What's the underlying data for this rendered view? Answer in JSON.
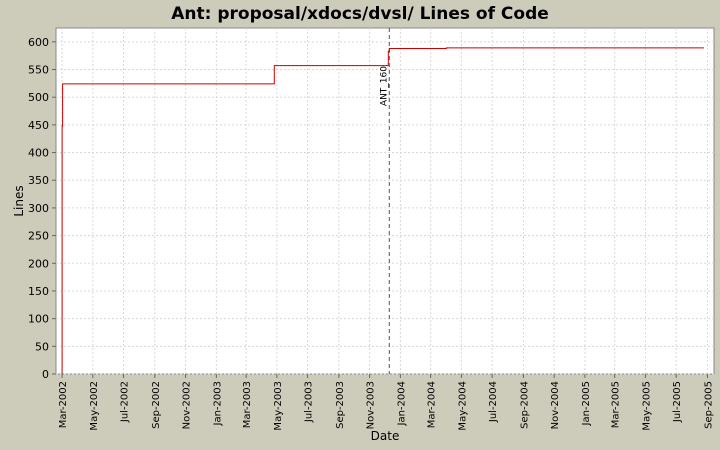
{
  "chart_data": {
    "type": "line",
    "title": "Ant: proposal/xdocs/dvsl/ Lines of Code",
    "xlabel": "Date",
    "ylabel": "Lines",
    "ylim": [
      0,
      625
    ],
    "yticks": [
      0,
      50,
      100,
      150,
      200,
      250,
      300,
      350,
      400,
      450,
      500,
      550,
      600
    ],
    "xlim": [
      "2002-02-17",
      "2005-09-14"
    ],
    "xticks": [
      {
        "date": "2002-03-01",
        "label": "Mar-2002"
      },
      {
        "date": "2002-05-01",
        "label": "May-2002"
      },
      {
        "date": "2002-07-01",
        "label": "Jul-2002"
      },
      {
        "date": "2002-09-01",
        "label": "Sep-2002"
      },
      {
        "date": "2002-11-01",
        "label": "Nov-2002"
      },
      {
        "date": "2003-01-01",
        "label": "Jan-2003"
      },
      {
        "date": "2003-03-01",
        "label": "Mar-2003"
      },
      {
        "date": "2003-05-01",
        "label": "May-2003"
      },
      {
        "date": "2003-07-01",
        "label": "Jul-2003"
      },
      {
        "date": "2003-09-01",
        "label": "Sep-2003"
      },
      {
        "date": "2003-11-01",
        "label": "Nov-2003"
      },
      {
        "date": "2004-01-01",
        "label": "Jan-2004"
      },
      {
        "date": "2004-03-01",
        "label": "Mar-2004"
      },
      {
        "date": "2004-05-01",
        "label": "May-2004"
      },
      {
        "date": "2004-07-01",
        "label": "Jul-2004"
      },
      {
        "date": "2004-09-01",
        "label": "Sep-2004"
      },
      {
        "date": "2004-11-01",
        "label": "Nov-2004"
      },
      {
        "date": "2005-01-01",
        "label": "Jan-2005"
      },
      {
        "date": "2005-03-01",
        "label": "Mar-2005"
      },
      {
        "date": "2005-05-01",
        "label": "May-2005"
      },
      {
        "date": "2005-07-01",
        "label": "Jul-2005"
      },
      {
        "date": "2005-09-01",
        "label": "Sep-2005"
      }
    ],
    "grid": true,
    "series": [
      {
        "color": "#cc0000",
        "points": [
          {
            "x": "2002-03-01",
            "y": 0
          },
          {
            "x": "2002-03-01",
            "y": 448
          },
          {
            "x": "2002-03-02",
            "y": 448
          },
          {
            "x": "2002-03-02",
            "y": 524
          },
          {
            "x": "2003-04-26",
            "y": 524
          },
          {
            "x": "2003-04-26",
            "y": 557
          },
          {
            "x": "2003-12-08",
            "y": 557
          },
          {
            "x": "2003-12-08",
            "y": 583
          },
          {
            "x": "2003-12-10",
            "y": 583
          },
          {
            "x": "2003-12-10",
            "y": 588
          },
          {
            "x": "2004-04-01",
            "y": 588
          },
          {
            "x": "2004-04-01",
            "y": 589
          },
          {
            "x": "2005-08-25",
            "y": 589
          }
        ]
      }
    ],
    "annotations": [
      {
        "x": "2003-12-10",
        "label": "ANT_160"
      }
    ],
    "colors": {
      "background": "#cdccbb",
      "plot_background": "#ffffff",
      "grid": "#d8d8d8",
      "series": "#cc0000",
      "annotation_line": "#555555"
    }
  }
}
